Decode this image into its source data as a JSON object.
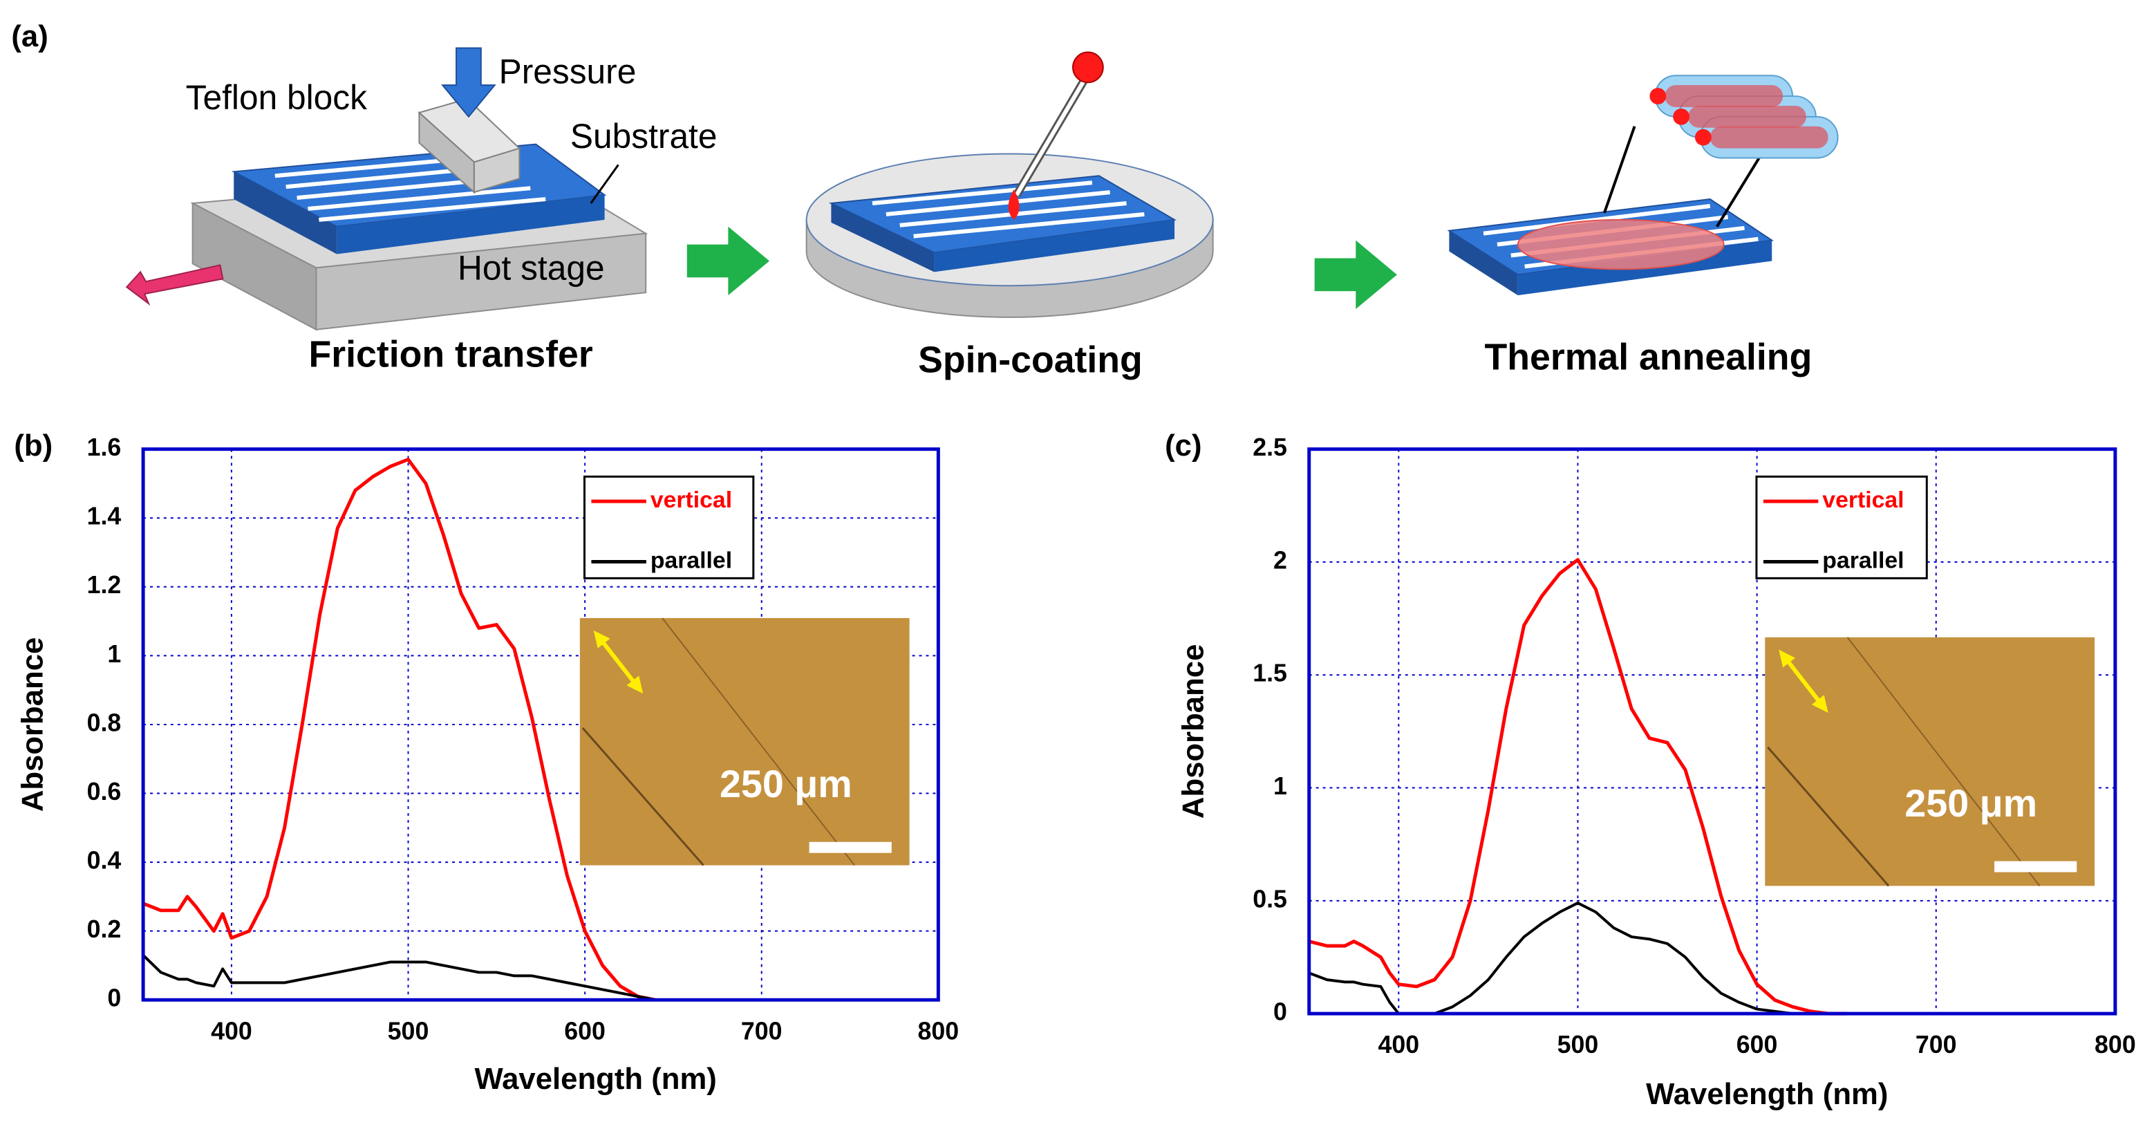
{
  "panel_label": "(a)",
  "diagram": {
    "labels": [
      "Teflon block",
      "Pressure",
      "Substrate",
      "Hot stage"
    ],
    "steps": [
      "Friction transfer",
      "Spin-coating",
      "Thermal annealing"
    ]
  },
  "chart_data": [
    {
      "type": "line",
      "panel_label": "(b)",
      "xlabel": "Wavelength (nm)",
      "ylabel": "Absorbance",
      "x": [
        350,
        360,
        370,
        375,
        380,
        390,
        395,
        400,
        410,
        420,
        430,
        440,
        450,
        460,
        470,
        480,
        490,
        500,
        510,
        520,
        530,
        540,
        550,
        560,
        570,
        580,
        590,
        600,
        610,
        620,
        630,
        640
      ],
      "series": [
        {
          "name": "vertical",
          "color": "#ff0000",
          "values": [
            0.28,
            0.26,
            0.26,
            0.3,
            0.27,
            0.2,
            0.25,
            0.18,
            0.2,
            0.3,
            0.5,
            0.8,
            1.12,
            1.37,
            1.48,
            1.52,
            1.55,
            1.57,
            1.5,
            1.35,
            1.18,
            1.08,
            1.09,
            1.02,
            0.82,
            0.58,
            0.36,
            0.2,
            0.1,
            0.04,
            0.01,
            0.0
          ]
        },
        {
          "name": "parallel",
          "color": "#000000",
          "values": [
            0.13,
            0.08,
            0.06,
            0.06,
            0.05,
            0.04,
            0.09,
            0.05,
            0.05,
            0.05,
            0.05,
            0.06,
            0.07,
            0.08,
            0.09,
            0.1,
            0.11,
            0.11,
            0.11,
            0.1,
            0.09,
            0.08,
            0.08,
            0.07,
            0.07,
            0.06,
            0.05,
            0.04,
            0.03,
            0.02,
            0.01,
            0.0
          ]
        }
      ],
      "xlim": [
        350,
        800
      ],
      "xticks": [
        400,
        500,
        600,
        700,
        800
      ],
      "ylim": [
        0,
        1.6
      ],
      "yticks": [
        0,
        0.2,
        0.4,
        0.6,
        0.8,
        1,
        1.2,
        1.4,
        1.6
      ],
      "grid": true,
      "legend": "upper right",
      "inset_label": "250 μm"
    },
    {
      "type": "line",
      "panel_label": "(c)",
      "xlabel": "Wavelength (nm)",
      "ylabel": "Absorbance",
      "x": [
        350,
        360,
        370,
        375,
        380,
        390,
        395,
        400,
        410,
        420,
        430,
        440,
        450,
        460,
        470,
        480,
        490,
        500,
        510,
        520,
        530,
        540,
        550,
        560,
        570,
        580,
        590,
        600,
        610,
        620,
        630,
        640,
        650
      ],
      "series": [
        {
          "name": "vertical",
          "color": "#ff0000",
          "values": [
            0.32,
            0.3,
            0.3,
            0.32,
            0.3,
            0.25,
            0.18,
            0.13,
            0.12,
            0.15,
            0.25,
            0.5,
            0.9,
            1.35,
            1.72,
            1.85,
            1.95,
            2.01,
            1.88,
            1.62,
            1.35,
            1.22,
            1.2,
            1.08,
            0.82,
            0.52,
            0.28,
            0.13,
            0.06,
            0.03,
            0.01,
            0.0,
            0.0
          ]
        },
        {
          "name": "parallel",
          "color": "#000000",
          "values": [
            0.18,
            0.15,
            0.14,
            0.14,
            0.13,
            0.12,
            0.05,
            0.0,
            0.0,
            0.0,
            0.03,
            0.08,
            0.15,
            0.25,
            0.34,
            0.4,
            0.45,
            0.49,
            0.45,
            0.38,
            0.34,
            0.33,
            0.31,
            0.25,
            0.16,
            0.09,
            0.05,
            0.02,
            0.01,
            0.0,
            0.0,
            0.0,
            0.0
          ]
        }
      ],
      "xlim": [
        350,
        800
      ],
      "xticks": [
        400,
        500,
        600,
        700,
        800
      ],
      "ylim": [
        0,
        2.5
      ],
      "yticks": [
        0,
        0.5,
        1,
        1.5,
        2,
        2.5
      ],
      "grid": true,
      "legend": "upper right",
      "inset_label": "250 μm"
    }
  ]
}
